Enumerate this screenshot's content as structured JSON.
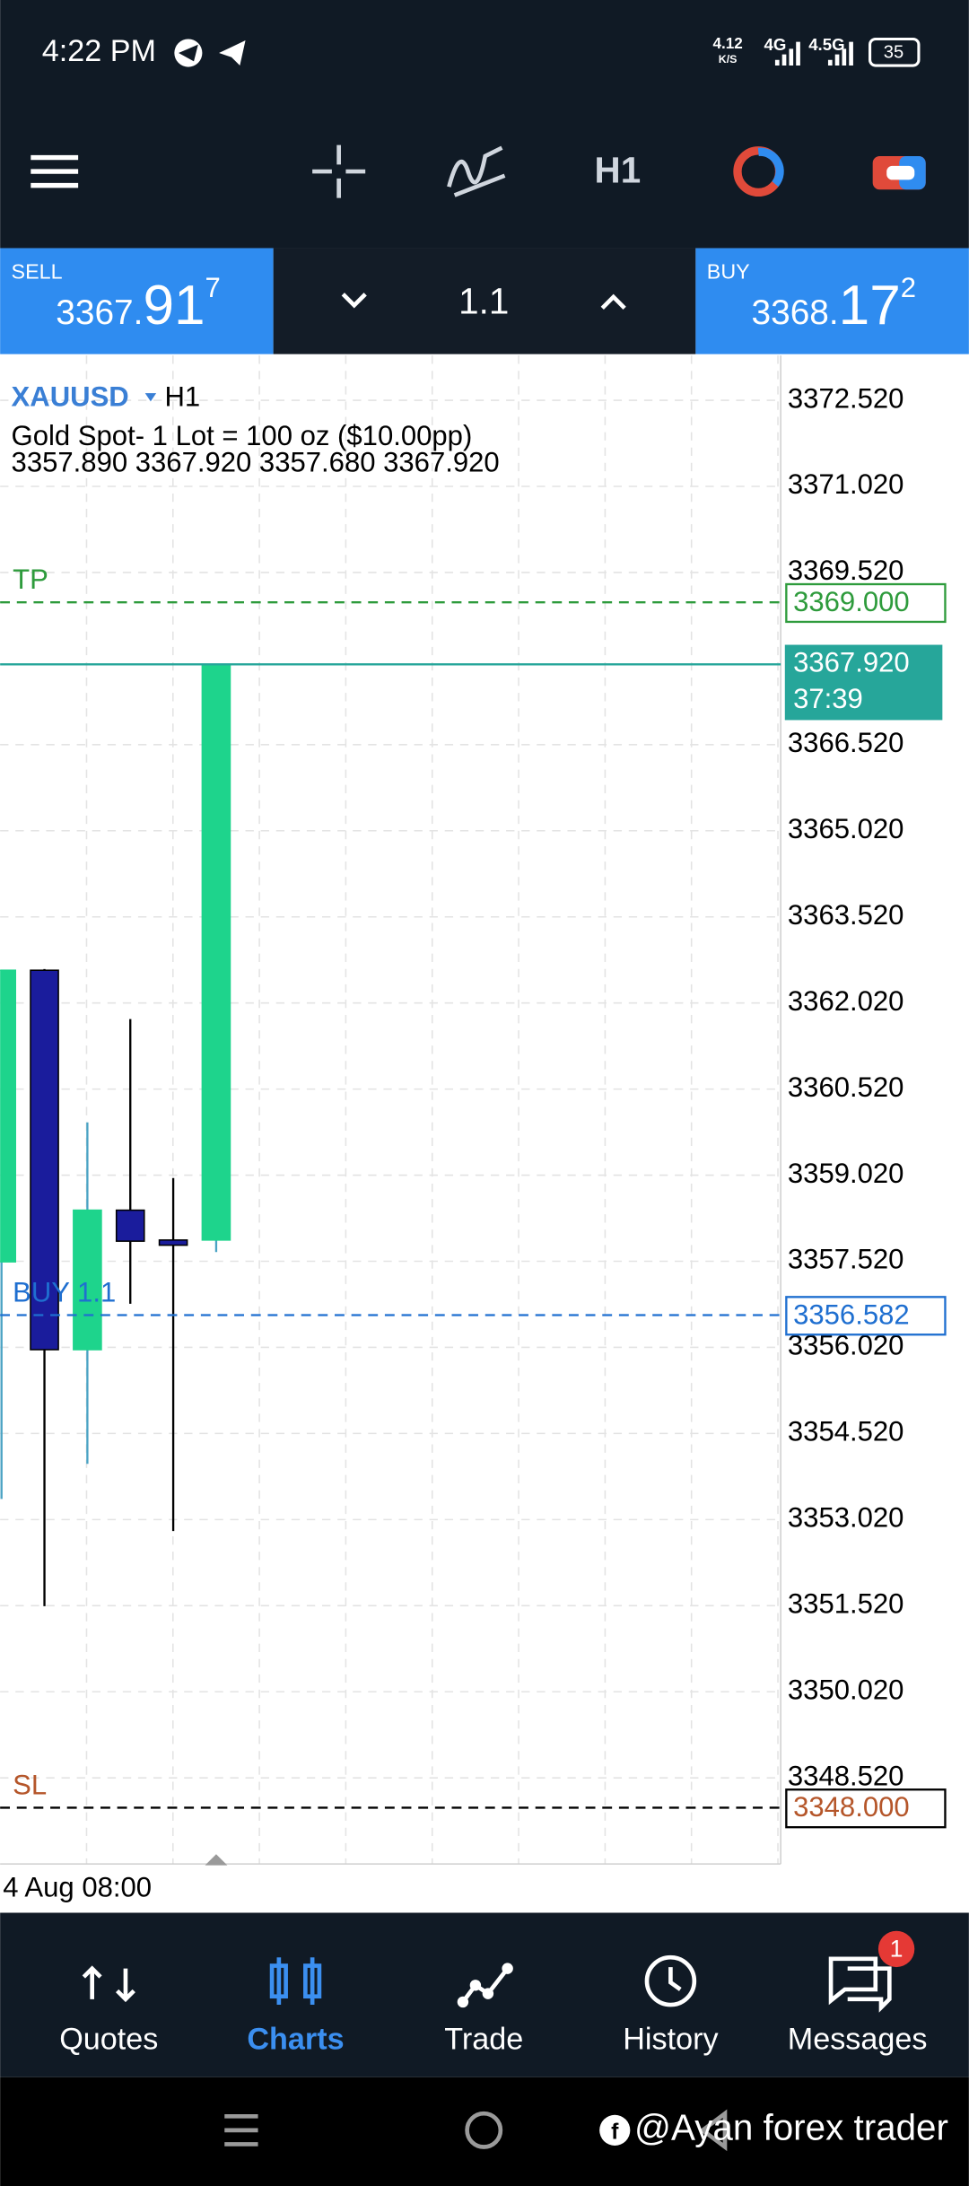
{
  "status_bar": {
    "time": "4:22 PM",
    "speed": "4.12",
    "speed_unit": "K/S",
    "network_1": "4G",
    "network_2": "4.5G",
    "battery": "35"
  },
  "toolbar": {
    "timeframe": "H1"
  },
  "trade_panel": {
    "sell": {
      "label": "SELL",
      "price": "3367.",
      "big": "91",
      "pip": "7"
    },
    "lot": "1.1",
    "buy": {
      "label": "BUY",
      "price": "3368.",
      "big": "17",
      "pip": "2"
    }
  },
  "chart_data": {
    "type": "candlestick",
    "symbol": "XAUUSD",
    "timeframe": "H1",
    "description": "Gold Spot- 1 Lot = 100 oz ($10.00pp)",
    "ohlc": "3357.890 3367.920 3357.680 3367.920",
    "time_label": "4 Aug 08:00",
    "up_color": "#1ed48c",
    "down_color": "#1a1c9c",
    "up_wick_color": "#4aa3c4",
    "down_wick_color": "#000000",
    "candles": [
      {
        "open": 3357.51,
        "high": 3362.59,
        "low": 3353.38,
        "close": 3362.59
      },
      {
        "open": 3362.59,
        "high": 3362.61,
        "low": 3351.51,
        "close": 3355.98
      },
      {
        "open": 3355.98,
        "high": 3359.94,
        "low": 3353.99,
        "close": 3358.41
      },
      {
        "open": 3358.41,
        "high": 3361.74,
        "low": 3356.78,
        "close": 3357.87
      },
      {
        "open": 3357.89,
        "high": 3358.97,
        "low": 3352.82,
        "close": 3357.8
      },
      {
        "open": 3357.89,
        "high": 3367.92,
        "low": 3357.68,
        "close": 3367.92
      }
    ],
    "ylim": [
      3347.02,
      3373.3
    ],
    "yticks": [
      {
        "value": 3372.52,
        "label": "3372.520"
      },
      {
        "value": 3371.02,
        "label": "3371.020"
      },
      {
        "value": 3369.52,
        "label": "3369.520"
      },
      {
        "value": 3366.52,
        "label": "3366.520"
      },
      {
        "value": 3365.02,
        "label": "3365.020"
      },
      {
        "value": 3363.52,
        "label": "3363.520"
      },
      {
        "value": 3362.02,
        "label": "3362.020"
      },
      {
        "value": 3360.52,
        "label": "3360.520"
      },
      {
        "value": 3359.02,
        "label": "3359.020"
      },
      {
        "value": 3357.52,
        "label": "3357.520"
      },
      {
        "value": 3356.02,
        "label": "3356.020"
      },
      {
        "value": 3354.52,
        "label": "3354.520"
      },
      {
        "value": 3353.02,
        "label": "3353.020"
      },
      {
        "value": 3351.52,
        "label": "3351.520"
      },
      {
        "value": 3350.02,
        "label": "3350.020"
      },
      {
        "value": 3348.52,
        "label": "3348.520"
      }
    ],
    "grid": true,
    "levels": [
      {
        "name": "TP",
        "value": 3369,
        "value_label": "3369.000",
        "color": "#2e9b3c",
        "style": "dashed"
      },
      {
        "value": 3367.92,
        "value_label": "3367.920",
        "timer": "37:39",
        "color": "#26a69a",
        "style": "solid"
      },
      {
        "name": "BUY 1.1",
        "value": 3356.582,
        "value_label": "3356.582",
        "color": "#1f6fd0",
        "style": "dashed"
      },
      {
        "name": "SL",
        "value": 3348,
        "value_label": "3348.000",
        "color": "#b5562a",
        "line_color": "#000000",
        "style": "dashed"
      }
    ]
  },
  "nav": {
    "items": [
      "Quotes",
      "Charts",
      "Trade",
      "History",
      "Messages"
    ],
    "active": 1,
    "badge": "1"
  },
  "watermark": "@Ayan forex trader"
}
